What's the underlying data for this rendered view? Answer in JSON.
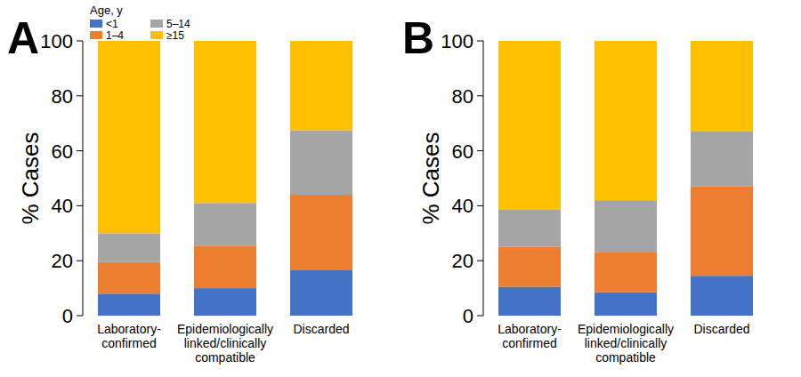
{
  "chart_data": [
    {
      "type": "bar",
      "title": "A",
      "stacked": true,
      "legend": "top-left",
      "legend_title": "Age, y",
      "y_label": "% Cases",
      "categories": [
        "Laboratory-confirmed",
        "Epidemiologically linked/clinically compatible",
        "Discarded"
      ],
      "ylim": [
        0,
        100
      ],
      "yticks": [
        0,
        20,
        40,
        60,
        80,
        100
      ],
      "grid": false,
      "series": [
        {
          "name": "<1",
          "color": "#4472c4",
          "values": [
            8,
            10,
            16.5
          ]
        },
        {
          "name": "1–4",
          "color": "#ed7d31",
          "values": [
            11.5,
            15.5,
            27.5
          ]
        },
        {
          "name": "5–14",
          "color": "#a5a5a5",
          "values": [
            10.5,
            15.5,
            23.5
          ]
        },
        {
          "name": "≥15",
          "color": "#ffc000",
          "values": [
            70,
            59,
            32.5
          ]
        }
      ]
    },
    {
      "type": "bar",
      "title": "B",
      "stacked": true,
      "y_label": "% Cases",
      "categories": [
        "Laboratory-confirmed",
        "Epidemiologically linked/clinically compatible",
        "Discarded"
      ],
      "ylim": [
        0,
        100
      ],
      "yticks": [
        0,
        20,
        40,
        60,
        80,
        100
      ],
      "grid": false,
      "series": [
        {
          "color": "#4472c4",
          "values": [
            10.5,
            8.5,
            14.5
          ]
        },
        {
          "color": "#ed7d31",
          "values": [
            14.5,
            14.5,
            32.5
          ]
        },
        {
          "color": "#a5a5a5",
          "values": [
            13.5,
            19,
            20
          ]
        },
        {
          "color": "#ffc000",
          "values": [
            61.5,
            58,
            33
          ]
        }
      ]
    }
  ]
}
